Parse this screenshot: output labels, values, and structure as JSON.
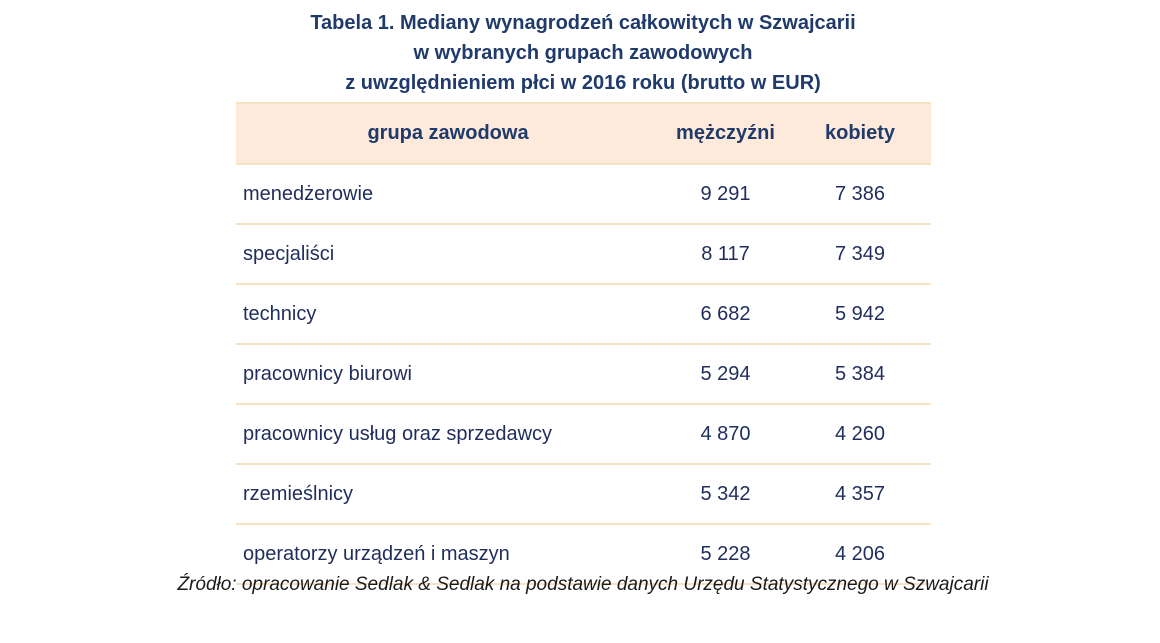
{
  "title": {
    "line1": "Tabela 1. Mediany wynagrodzeń całkowitych w Szwajcarii",
    "line2": "w wybranych grupach zawodowych",
    "line3": "z uwzględnieniem płci w 2016 roku (brutto w EUR)"
  },
  "table": {
    "headers": [
      "grupa zawodowa",
      "mężczyźni",
      "kobiety"
    ],
    "rows": [
      [
        "menedżerowie",
        "9 291",
        "7 386"
      ],
      [
        "specjaliści",
        "8 117",
        "7 349"
      ],
      [
        "technicy",
        "6 682",
        "5 942"
      ],
      [
        "pracownicy biurowi",
        "5 294",
        "5 384"
      ],
      [
        "pracownicy usług oraz sprzedawcy",
        "4 870",
        "4 260"
      ],
      [
        "rzemieślnicy",
        "5 342",
        "4 357"
      ],
      [
        "operatorzy urządzeń i maszyn",
        "5 228",
        "4 206"
      ]
    ]
  },
  "source": "Źródło: opracowanie Sedlak & Sedlak na podstawie danych Urzędu Statystycznego w Szwajcarii"
}
